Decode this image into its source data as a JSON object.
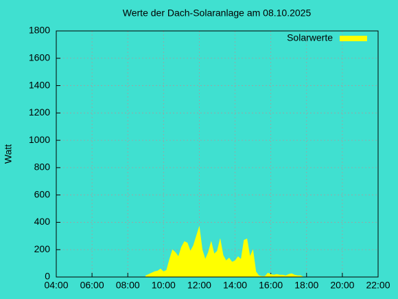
{
  "chart_data": {
    "type": "area",
    "title": "Werte der Dach-Solaranlage am 08.10.2025",
    "y_label": "Watt",
    "x": [
      "09:00",
      "09:10",
      "09:20",
      "09:30",
      "09:40",
      "09:50",
      "10:00",
      "10:10",
      "10:20",
      "10:30",
      "10:40",
      "10:50",
      "11:00",
      "11:10",
      "11:20",
      "11:30",
      "11:40",
      "11:50",
      "12:00",
      "12:10",
      "12:20",
      "12:30",
      "12:40",
      "12:50",
      "13:00",
      "13:10",
      "13:20",
      "13:30",
      "13:40",
      "13:50",
      "14:00",
      "14:10",
      "14:20",
      "14:30",
      "14:40",
      "14:50",
      "15:00",
      "15:10",
      "15:20",
      "15:30",
      "15:40",
      "15:50",
      "16:00",
      "16:10",
      "16:20",
      "16:30",
      "16:40",
      "16:50",
      "17:00",
      "17:10",
      "17:20",
      "17:30",
      "17:40",
      "17:50"
    ],
    "series": [
      {
        "name": "Solarwerte",
        "color": "#ffff00",
        "values": [
          10,
          20,
          30,
          40,
          45,
          60,
          40,
          50,
          130,
          200,
          180,
          150,
          220,
          260,
          250,
          190,
          230,
          300,
          370,
          200,
          130,
          180,
          260,
          170,
          190,
          280,
          160,
          120,
          140,
          110,
          120,
          150,
          130,
          270,
          280,
          150,
          200,
          40,
          10,
          5,
          5,
          30,
          20,
          15,
          20,
          15,
          15,
          10,
          20,
          25,
          15,
          10,
          10,
          0
        ]
      }
    ],
    "xlim": [
      "04:00",
      "22:00"
    ],
    "xticks": [
      "04:00",
      "06:00",
      "08:00",
      "10:00",
      "12:00",
      "14:00",
      "16:00",
      "18:00",
      "20:00",
      "22:00"
    ],
    "ylim": [
      0,
      1800
    ],
    "yticks": [
      0,
      200,
      400,
      600,
      800,
      1000,
      1200,
      1400,
      1600,
      1800
    ],
    "grid": true,
    "legend": "top-right"
  }
}
